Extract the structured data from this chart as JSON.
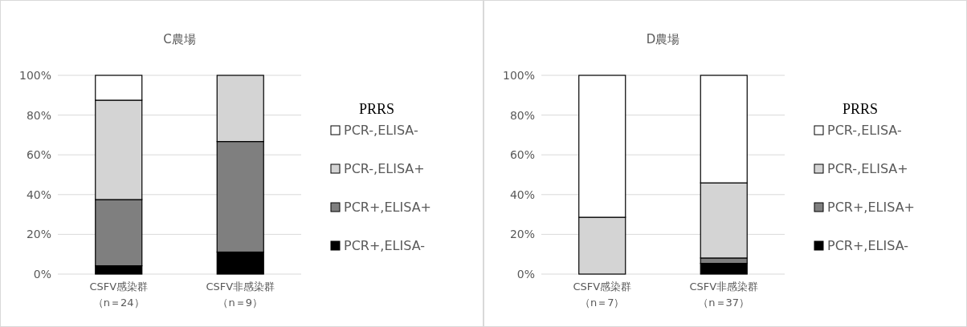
{
  "chart_data": [
    {
      "type": "bar",
      "stacked": true,
      "title": "C農場",
      "legend_title": "PRRS",
      "legend": "right",
      "grid": "y",
      "categories": [
        "CSFV感染群（n＝24）",
        "CSFV非感染群（n＝9）"
      ],
      "ylim": [
        0,
        100
      ],
      "yticks": [
        {
          "value": 0,
          "label": "0%"
        },
        {
          "value": 20,
          "label": "20%"
        },
        {
          "value": 40,
          "label": "40%"
        },
        {
          "value": 60,
          "label": "60%"
        },
        {
          "value": 80,
          "label": "80%"
        },
        {
          "value": 100,
          "label": "100%"
        }
      ],
      "series": [
        {
          "name": "PCR+,ELISA-",
          "color": "#000000",
          "values": [
            4.2,
            11.1
          ]
        },
        {
          "name": "PCR+,ELISA+",
          "color": "#7f7f7f",
          "values": [
            33.3,
            55.6
          ]
        },
        {
          "name": "PCR-,ELISA+",
          "color": "#d4d4d4",
          "values": [
            50.0,
            33.3
          ]
        },
        {
          "name": "PCR-,ELISA-",
          "color": "#ffffff",
          "values": [
            12.5,
            0
          ]
        }
      ]
    },
    {
      "type": "bar",
      "stacked": true,
      "title": "D農場",
      "legend_title": "PRRS",
      "legend": "right",
      "grid": "y",
      "categories": [
        "CSFV感染群（n＝7）",
        "CSFV非感染群（n＝37）"
      ],
      "ylim": [
        0,
        100
      ],
      "yticks": [
        {
          "value": 0,
          "label": "0%"
        },
        {
          "value": 20,
          "label": "20%"
        },
        {
          "value": 40,
          "label": "40%"
        },
        {
          "value": 60,
          "label": "60%"
        },
        {
          "value": 80,
          "label": "80%"
        },
        {
          "value": 100,
          "label": "100%"
        }
      ],
      "series": [
        {
          "name": "PCR+,ELISA-",
          "color": "#000000",
          "values": [
            0,
            5.4
          ]
        },
        {
          "name": "PCR+,ELISA+",
          "color": "#7f7f7f",
          "values": [
            0,
            2.7
          ]
        },
        {
          "name": "PCR-,ELISA+",
          "color": "#d4d4d4",
          "values": [
            28.6,
            37.8
          ]
        },
        {
          "name": "PCR-,ELISA-",
          "color": "#ffffff",
          "values": [
            71.4,
            54.1
          ]
        }
      ]
    }
  ]
}
